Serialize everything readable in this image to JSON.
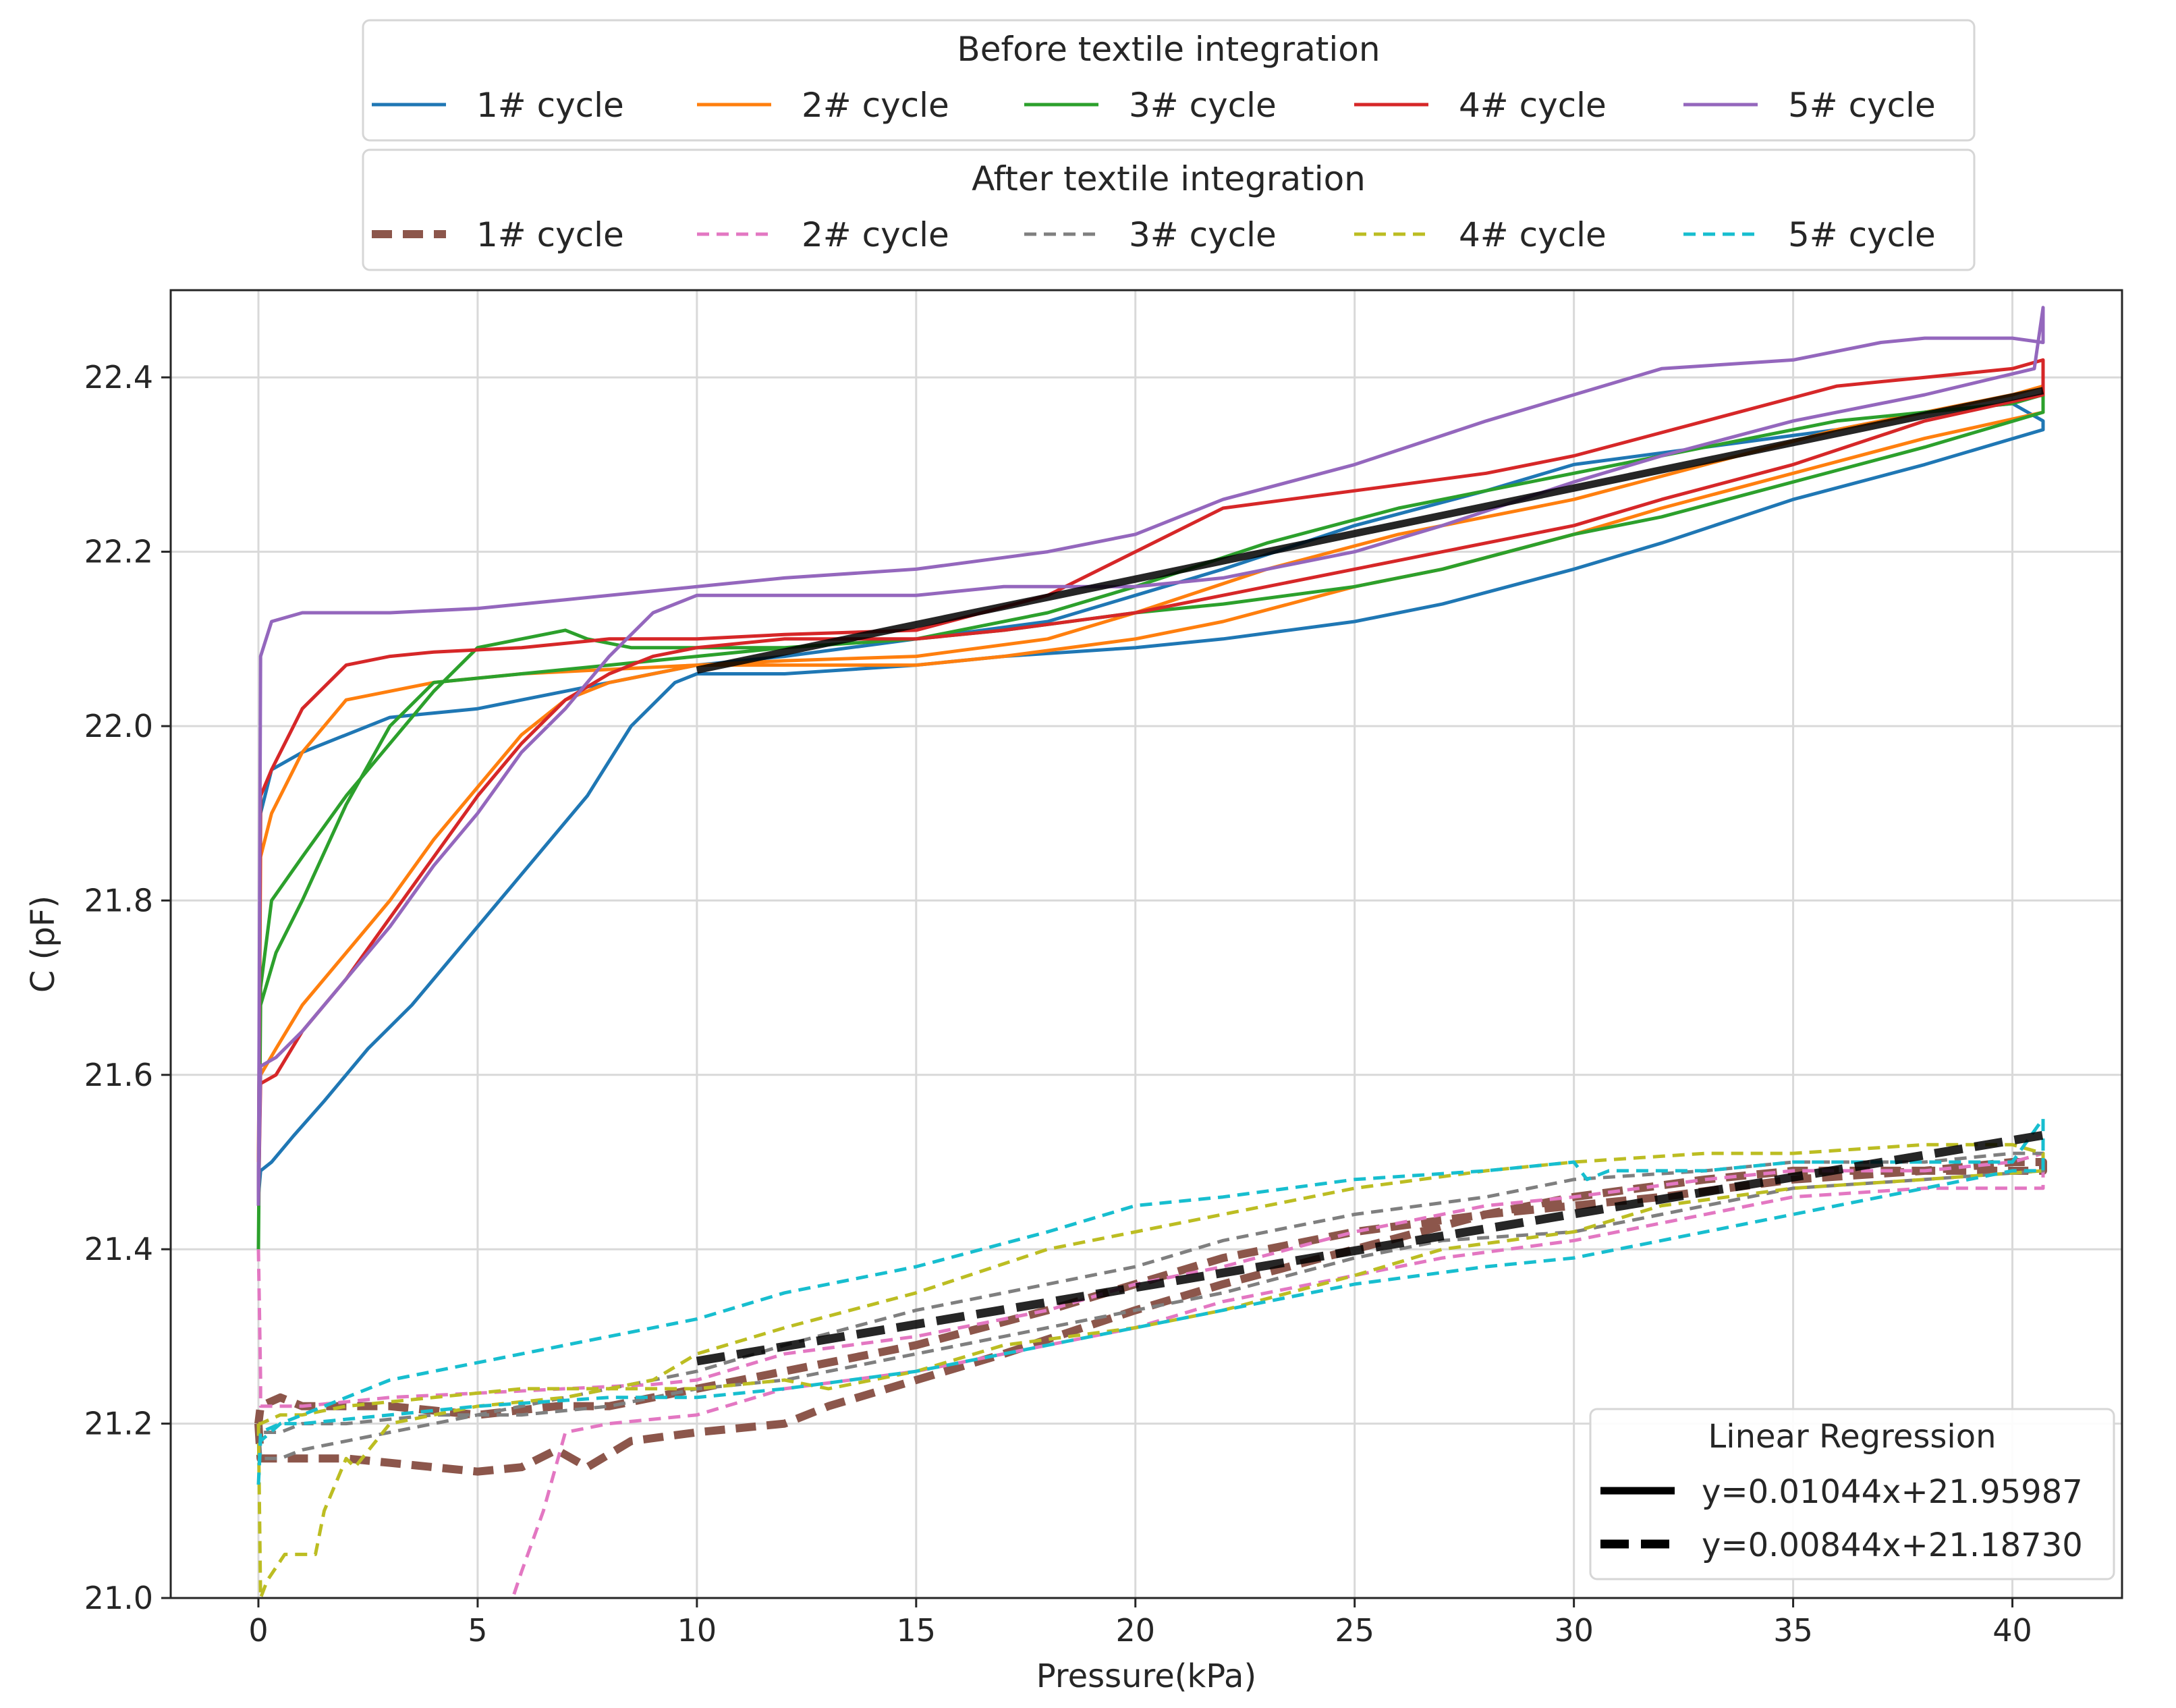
{
  "chart_data": {
    "type": "line",
    "title": "",
    "xlabel": "Pressure(kPa)",
    "ylabel": "C (pF)",
    "xlim": [
      -2,
      42.5
    ],
    "ylim": [
      21.0,
      22.5
    ],
    "grid": true,
    "xticks": [
      0,
      5,
      10,
      15,
      20,
      25,
      30,
      35,
      40
    ],
    "yticks": [
      21.0,
      21.2,
      21.4,
      21.6,
      21.8,
      22.0,
      22.2,
      22.4
    ],
    "xtick_labels": [
      "0",
      "5",
      "10",
      "15",
      "20",
      "25",
      "30",
      "35",
      "40"
    ],
    "ytick_labels": [
      "21.0",
      "21.2",
      "21.4",
      "21.6",
      "21.8",
      "22.0",
      "22.2",
      "22.4"
    ],
    "legends": [
      {
        "title": "Before textile integration",
        "placement": "top",
        "entries": [
          "1# cycle",
          "2# cycle",
          "3# cycle",
          "4# cycle",
          "5# cycle"
        ]
      },
      {
        "title": "After textile integration",
        "placement": "top",
        "entries": [
          "1# cycle",
          "2# cycle",
          "3# cycle",
          "4# cycle",
          "5# cycle"
        ]
      },
      {
        "title": "Linear Regression",
        "placement": "lower-right",
        "entries": [
          "y=0.01044x+21.95987",
          "y=0.00844x+21.18730"
        ]
      }
    ],
    "series": [
      {
        "name": "1# cycle",
        "group": "Before textile integration",
        "color": "#1f77b4",
        "style": "solid",
        "x": [
          0,
          0.05,
          0.3,
          1,
          2,
          3,
          4,
          5,
          6,
          7,
          8,
          9,
          10,
          12,
          15,
          18,
          20,
          22,
          25,
          28,
          30,
          33,
          36,
          38,
          40,
          40.7,
          40.7,
          38,
          35,
          32,
          30,
          27,
          25,
          22,
          20,
          17,
          15,
          12,
          10,
          9.5,
          8.5,
          7.5,
          6.5,
          5.5,
          4.5,
          3.5,
          2.5,
          1.5,
          0.8,
          0.3,
          0.05,
          0
        ],
        "y": [
          21.46,
          21.9,
          21.95,
          21.97,
          21.99,
          22.01,
          22.015,
          22.02,
          22.03,
          22.04,
          22.05,
          22.06,
          22.07,
          22.08,
          22.1,
          22.12,
          22.15,
          22.18,
          22.23,
          22.27,
          22.3,
          22.32,
          22.34,
          22.36,
          22.37,
          22.35,
          22.34,
          22.3,
          22.26,
          22.21,
          22.18,
          22.14,
          22.12,
          22.1,
          22.09,
          22.08,
          22.07,
          22.06,
          22.06,
          22.05,
          22.0,
          21.92,
          21.86,
          21.8,
          21.74,
          21.68,
          21.63,
          21.57,
          21.53,
          21.5,
          21.49,
          21.46
        ]
      },
      {
        "name": "2# cycle",
        "group": "Before textile integration",
        "color": "#ff7f0e",
        "style": "solid",
        "x": [
          0,
          0.05,
          0.3,
          1,
          2,
          3,
          4,
          6,
          8,
          10,
          12,
          15,
          18,
          20,
          23,
          26,
          30,
          33,
          36,
          38,
          40,
          40.7,
          40.7,
          38,
          35,
          32,
          30,
          27,
          25,
          22,
          20,
          17,
          15,
          12,
          10,
          9,
          8,
          7,
          6,
          5,
          4,
          3,
          2,
          1,
          0.4,
          0.05,
          0
        ],
        "y": [
          21.5,
          21.85,
          21.9,
          21.97,
          22.03,
          22.04,
          22.05,
          22.06,
          22.065,
          22.07,
          22.075,
          22.08,
          22.1,
          22.13,
          22.18,
          22.22,
          22.26,
          22.3,
          22.34,
          22.36,
          22.38,
          22.39,
          22.36,
          22.33,
          22.29,
          22.25,
          22.22,
          22.18,
          22.16,
          22.12,
          22.1,
          22.08,
          22.07,
          22.07,
          22.07,
          22.06,
          22.05,
          22.03,
          21.99,
          21.93,
          21.87,
          21.8,
          21.74,
          21.68,
          21.63,
          21.6,
          21.5
        ]
      },
      {
        "name": "3# cycle",
        "group": "Before textile integration",
        "color": "#2ca02c",
        "style": "solid",
        "x": [
          0,
          0.05,
          0.3,
          1,
          2,
          3,
          4,
          5,
          6,
          7,
          7.5,
          8.5,
          10,
          12,
          15,
          18,
          20,
          23,
          26,
          30,
          33,
          36,
          38,
          40,
          40.7,
          40.7,
          38,
          35,
          32,
          30,
          27,
          25,
          22,
          20,
          17,
          15,
          12,
          10,
          8,
          6,
          4,
          3,
          2,
          1,
          0.4,
          0.05,
          0
        ],
        "y": [
          21.4,
          21.7,
          21.8,
          21.85,
          21.92,
          21.98,
          22.04,
          22.09,
          22.1,
          22.11,
          22.1,
          22.09,
          22.09,
          22.09,
          22.1,
          22.13,
          22.16,
          22.21,
          22.25,
          22.29,
          22.32,
          22.35,
          22.36,
          22.37,
          22.38,
          22.36,
          22.32,
          22.28,
          22.24,
          22.22,
          22.18,
          22.16,
          22.14,
          22.13,
          22.11,
          22.1,
          22.09,
          22.08,
          22.07,
          22.06,
          22.05,
          22.0,
          21.91,
          21.8,
          21.74,
          21.68,
          21.4
        ]
      },
      {
        "name": "4# cycle",
        "group": "Before textile integration",
        "color": "#d62728",
        "style": "solid",
        "x": [
          0,
          0.05,
          0.3,
          1,
          2,
          3,
          4,
          6,
          8,
          10,
          12,
          15,
          18,
          20,
          22,
          25,
          28,
          30,
          33,
          36,
          38,
          40,
          40.7,
          40.7,
          38,
          35,
          32,
          30,
          27,
          25,
          22,
          20,
          17,
          15,
          12,
          10,
          9,
          8,
          7,
          6,
          5,
          4,
          3,
          2,
          1,
          0.4,
          0.05,
          0
        ],
        "y": [
          21.45,
          21.92,
          21.95,
          22.02,
          22.07,
          22.08,
          22.085,
          22.09,
          22.1,
          22.1,
          22.105,
          22.11,
          22.15,
          22.2,
          22.25,
          22.27,
          22.29,
          22.31,
          22.35,
          22.39,
          22.4,
          22.41,
          22.42,
          22.38,
          22.35,
          22.3,
          22.26,
          22.23,
          22.2,
          22.18,
          22.15,
          22.13,
          22.11,
          22.1,
          22.1,
          22.09,
          22.08,
          22.06,
          22.03,
          21.98,
          21.92,
          21.85,
          21.78,
          21.71,
          21.65,
          21.6,
          21.59,
          21.45
        ]
      },
      {
        "name": "5# cycle",
        "group": "Before textile integration",
        "color": "#9467bd",
        "style": "solid",
        "x": [
          0,
          0.05,
          0.3,
          1,
          2,
          3,
          5,
          7,
          9,
          10,
          12,
          15,
          18,
          20,
          22,
          25,
          28,
          30,
          32,
          35,
          37,
          38,
          40,
          40.7,
          40.7,
          40.5,
          38,
          35,
          32,
          30,
          27,
          25,
          22,
          20,
          17,
          15,
          13,
          12,
          10,
          9,
          8,
          7,
          6,
          5,
          4,
          3,
          2,
          1,
          0.4,
          0.05,
          0
        ],
        "y": [
          21.45,
          22.08,
          22.12,
          22.13,
          22.13,
          22.13,
          22.135,
          22.145,
          22.155,
          22.16,
          22.17,
          22.18,
          22.2,
          22.22,
          22.26,
          22.3,
          22.35,
          22.38,
          22.41,
          22.42,
          22.44,
          22.445,
          22.445,
          22.44,
          22.48,
          22.41,
          22.38,
          22.35,
          22.31,
          22.28,
          22.23,
          22.2,
          22.17,
          22.16,
          22.16,
          22.15,
          22.15,
          22.15,
          22.15,
          22.13,
          22.08,
          22.02,
          21.97,
          21.9,
          21.84,
          21.77,
          21.71,
          21.65,
          21.62,
          21.61,
          21.45
        ]
      },
      {
        "name": "1# cycle",
        "group": "After textile integration",
        "color": "#8c564b",
        "style": "dashed-bold",
        "x": [
          0,
          0.05,
          0.5,
          1,
          2,
          3,
          4,
          5,
          6,
          6.8,
          7.5,
          8.5,
          10,
          12,
          13,
          15,
          17,
          20,
          22,
          25,
          28,
          30,
          33,
          35,
          38,
          40,
          40.7,
          40.7,
          38,
          35,
          32,
          30,
          28,
          25,
          22,
          20,
          18,
          15,
          12,
          10,
          8,
          6.8,
          5,
          3,
          1,
          0.5,
          0.05,
          0
        ],
        "y": [
          21.2,
          21.16,
          21.16,
          21.16,
          21.16,
          21.155,
          21.15,
          21.145,
          21.15,
          21.17,
          21.15,
          21.18,
          21.19,
          21.2,
          21.22,
          21.25,
          21.28,
          21.33,
          21.36,
          21.4,
          21.44,
          21.46,
          21.48,
          21.49,
          21.49,
          21.5,
          21.5,
          21.49,
          21.49,
          21.48,
          21.46,
          21.45,
          21.44,
          21.42,
          21.39,
          21.36,
          21.33,
          21.29,
          21.26,
          21.24,
          21.22,
          21.22,
          21.21,
          21.22,
          21.22,
          21.23,
          21.22,
          21.2
        ]
      },
      {
        "name": "2# cycle",
        "group": "After textile integration",
        "color": "#e377c2",
        "style": "dashed",
        "x": [
          0,
          0.05,
          0.05,
          0.5,
          1,
          2,
          3,
          5,
          7,
          9,
          10,
          12,
          15,
          18,
          20,
          22,
          25,
          28,
          30,
          33,
          35,
          38,
          40,
          40.7,
          40.7,
          38,
          35,
          32,
          30,
          27,
          25,
          22,
          20,
          18,
          15,
          12,
          10,
          8,
          7,
          6.5,
          6,
          5.8
        ],
        "y": [
          21.4,
          21.25,
          21.22,
          21.22,
          21.22,
          21.225,
          21.23,
          21.235,
          21.24,
          21.245,
          21.25,
          21.28,
          21.3,
          21.33,
          21.36,
          21.38,
          21.42,
          21.45,
          21.46,
          21.48,
          21.49,
          21.49,
          21.5,
          21.51,
          21.47,
          21.47,
          21.46,
          21.43,
          21.41,
          21.39,
          21.37,
          21.34,
          21.31,
          21.29,
          21.26,
          21.24,
          21.21,
          21.2,
          21.19,
          21.1,
          21.03,
          21.0
        ]
      },
      {
        "name": "3# cycle",
        "group": "After textile integration",
        "color": "#7f7f7f",
        "style": "dashed",
        "x": [
          0,
          0.05,
          0.5,
          1,
          2,
          3,
          4,
          5,
          6,
          8,
          10,
          12,
          15,
          18,
          20,
          22,
          25,
          28,
          30,
          33,
          35,
          38,
          40,
          40.7,
          40.7,
          38,
          35,
          32,
          30,
          27,
          25,
          22,
          20,
          17,
          15,
          12,
          10,
          8,
          6,
          4,
          2,
          1,
          0.5,
          0.05,
          0
        ],
        "y": [
          21.2,
          21.16,
          21.16,
          21.17,
          21.18,
          21.19,
          21.2,
          21.21,
          21.22,
          21.24,
          21.26,
          21.29,
          21.33,
          21.36,
          21.38,
          21.41,
          21.44,
          21.46,
          21.48,
          21.49,
          21.5,
          21.5,
          21.51,
          21.51,
          21.49,
          21.48,
          21.47,
          21.44,
          21.42,
          21.41,
          21.39,
          21.35,
          21.33,
          21.3,
          21.28,
          21.25,
          21.24,
          21.22,
          21.21,
          21.21,
          21.2,
          21.2,
          21.19,
          21.19,
          21.2
        ]
      },
      {
        "name": "4# cycle",
        "group": "After textile integration",
        "color": "#bcbd22",
        "style": "dashed",
        "x": [
          0,
          0.05,
          0.2,
          0.6,
          1.3,
          1.5,
          2,
          2.2,
          3,
          5,
          7,
          9,
          10,
          12,
          15,
          18,
          20,
          23,
          25,
          28,
          30,
          33,
          35,
          38,
          40,
          40.7,
          40.7,
          38,
          35,
          32,
          30,
          27,
          25,
          22,
          20,
          17,
          15,
          13,
          12,
          10,
          8,
          6,
          4,
          2,
          1,
          0.5,
          0.05,
          0
        ],
        "y": [
          21.2,
          21.0,
          21.02,
          21.05,
          21.05,
          21.1,
          21.16,
          21.15,
          21.2,
          21.22,
          21.23,
          21.25,
          21.28,
          21.31,
          21.35,
          21.4,
          21.42,
          21.45,
          21.47,
          21.49,
          21.5,
          21.51,
          21.51,
          21.52,
          21.52,
          21.51,
          21.49,
          21.48,
          21.47,
          21.45,
          21.42,
          21.4,
          21.37,
          21.33,
          21.31,
          21.29,
          21.26,
          21.24,
          21.25,
          21.24,
          21.24,
          21.24,
          21.23,
          21.22,
          21.21,
          21.21,
          21.2,
          21.2
        ]
      },
      {
        "name": "5# cycle",
        "group": "After textile integration",
        "color": "#17becf",
        "style": "dashed",
        "x": [
          0,
          0.05,
          0.5,
          1,
          2,
          3,
          4,
          5,
          7,
          10,
          12,
          15,
          18,
          20,
          22,
          25,
          28,
          30,
          30.3,
          30.8,
          33,
          35,
          38,
          40,
          40.7,
          40.7,
          40,
          38,
          35,
          32,
          30,
          28,
          25,
          22,
          20,
          17,
          15,
          12,
          10,
          8,
          5,
          3,
          1,
          0.5,
          0.05,
          0
        ],
        "y": [
          21.13,
          21.18,
          21.2,
          21.21,
          21.23,
          21.25,
          21.26,
          21.27,
          21.29,
          21.32,
          21.35,
          21.38,
          21.42,
          21.45,
          21.46,
          21.48,
          21.49,
          21.5,
          21.48,
          21.49,
          21.49,
          21.5,
          21.5,
          21.5,
          21.55,
          21.49,
          21.49,
          21.47,
          21.44,
          21.41,
          21.39,
          21.38,
          21.36,
          21.33,
          21.31,
          21.28,
          21.26,
          21.24,
          21.23,
          21.23,
          21.22,
          21.21,
          21.2,
          21.2,
          21.19,
          21.13
        ]
      },
      {
        "name": "y=0.01044x+21.95987",
        "group": "Linear Regression",
        "color": "#000000",
        "style": "regression-solid",
        "x": [
          10,
          40.7
        ],
        "y": [
          22.06427,
          22.38478
        ]
      },
      {
        "name": "y=0.00844x+21.18730",
        "group": "Linear Regression",
        "color": "#000000",
        "style": "regression-dashed",
        "x": [
          10,
          40.7
        ],
        "y": [
          21.2717,
          21.53081
        ]
      }
    ]
  }
}
